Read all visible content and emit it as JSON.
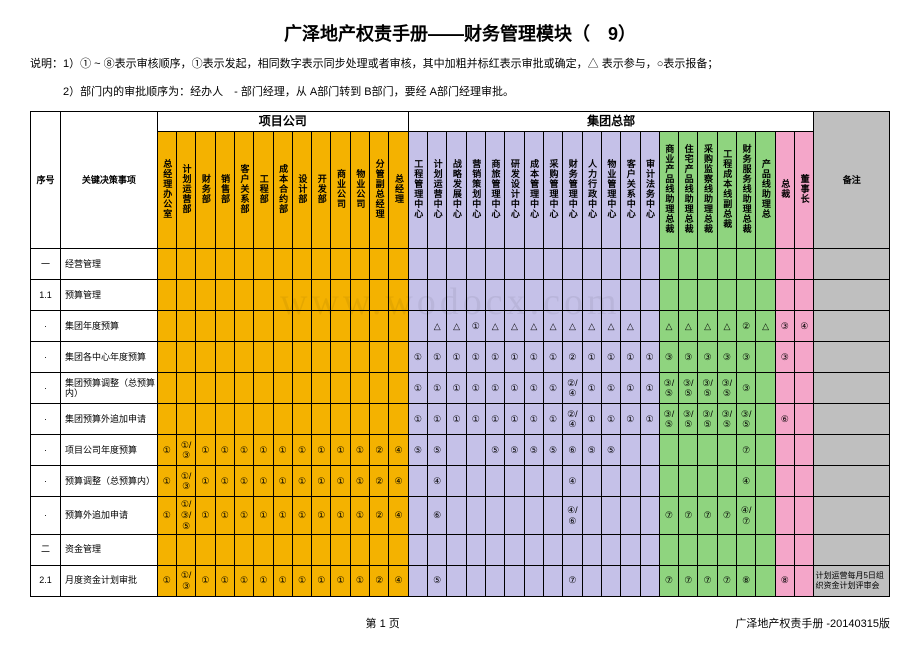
{
  "title": "广泽地产权责手册——财务管理模块（　9）",
  "note1": "说明：1）① ~ ⑧表示审核顺序，①表示发起，相同数字表示同步处理或者审核，其中加粗并标红表示审批或确定，△ 表示参与，○表示报备；",
  "note2": "　　　2）部门内的审批顺序为：经办人　- 部门经理，从 A部门转到 B部门，要经 A部门经理审批。",
  "watermark": "www.wodocx.com",
  "group_proj": "项目公司",
  "group_hq": "集团总部",
  "h_seq": "序号",
  "h_item": "关键决策事项",
  "h_remark": "备注",
  "proj_cols": [
    "总经理办公室",
    "计划运营部",
    "财务部",
    "销售部",
    "客户关系部",
    "工程部",
    "成本合约部",
    "设计部",
    "开发部",
    "商业公司",
    "物业公司",
    "分管副总经理",
    "总经理"
  ],
  "hq_cols": [
    "工程管理中心",
    "计划运营中心",
    "战略发展中心",
    "营销策划中心",
    "商旅管理中心",
    "研发设计中心",
    "成本管理中心",
    "采购管理中心",
    "财务管理中心",
    "人力行政中心",
    "物业管理中心",
    "客户关系中心",
    "审计法务中心",
    "商业产品线助理总裁",
    "住宅产品线助理总裁",
    "采购监察线助理总裁",
    "工程成本线副总裁",
    "财务服务线助理总裁",
    "产品线助理总",
    "总裁",
    "董事长"
  ],
  "rows": [
    {
      "seq": "一",
      "item": "经营管理",
      "cells": [],
      "remark": ""
    },
    {
      "seq": "1.1",
      "item": "预算管理",
      "cells": [],
      "remark": ""
    },
    {
      "seq": "·",
      "item": "集团年度预算",
      "cells": {
        "15": "△",
        "16": "△",
        "17": "①",
        "18": "△",
        "19": "△",
        "20": "△",
        "21": "△",
        "22": "△",
        "23": "△",
        "24": "△",
        "25": "△",
        "27": "△",
        "28": "△",
        "29": "△",
        "30": "△",
        "31": "②",
        "32": "△",
        "33": "③",
        "34": "④"
      },
      "remark": ""
    },
    {
      "seq": "·",
      "item": "集团各中心年度预算",
      "cells": {
        "14": "①",
        "15": "①",
        "16": "①",
        "17": "①",
        "18": "①",
        "19": "①",
        "20": "①",
        "21": "①",
        "22": "②",
        "23": "①",
        "24": "①",
        "25": "①",
        "26": "①",
        "27": "③",
        "28": "③",
        "29": "③",
        "30": "③",
        "31": "③",
        "33": "③"
      },
      "remark": ""
    },
    {
      "seq": "·",
      "item": "集团预算调整（总预算内）",
      "cells": {
        "14": "①",
        "15": "①",
        "16": "①",
        "17": "①",
        "18": "①",
        "19": "①",
        "20": "①",
        "21": "①",
        "22": "②/④",
        "23": "①",
        "24": "①",
        "25": "①",
        "26": "①",
        "27": "③/⑤",
        "28": "③/⑤",
        "29": "③/⑤",
        "30": "③/⑤",
        "31": "③"
      },
      "remark": ""
    },
    {
      "seq": "·",
      "item": "集团预算外追加申请",
      "cells": {
        "14": "①",
        "15": "①",
        "16": "①",
        "17": "①",
        "18": "①",
        "19": "①",
        "20": "①",
        "21": "①",
        "22": "②/④",
        "23": "①",
        "24": "①",
        "25": "①",
        "26": "①",
        "27": "③/⑤",
        "28": "③/⑤",
        "29": "③/⑤",
        "30": "③/⑤",
        "31": "③/⑤",
        "33": "⑥"
      },
      "remark": ""
    },
    {
      "seq": "·",
      "item": "项目公司年度预算",
      "cells": {
        "1": "①",
        "2": "①/③",
        "3": "①",
        "4": "①",
        "5": "①",
        "6": "①",
        "7": "①",
        "8": "①",
        "9": "①",
        "10": "①",
        "11": "①",
        "12": "②",
        "13": "④",
        "14": "⑤",
        "15": "⑤",
        "18": "⑤",
        "19": "⑤",
        "20": "⑤",
        "21": "⑤",
        "22": "⑥",
        "23": "⑤",
        "24": "⑤",
        "31": "⑦"
      },
      "remark": ""
    },
    {
      "seq": "·",
      "item": "预算调整（总预算内）",
      "cells": {
        "1": "①",
        "2": "①/③",
        "3": "①",
        "4": "①",
        "5": "①",
        "6": "①",
        "7": "①",
        "8": "①",
        "9": "①",
        "10": "①",
        "11": "①",
        "12": "②",
        "13": "④",
        "15": "④",
        "22": "④",
        "31": "④"
      },
      "remark": ""
    },
    {
      "seq": "·",
      "item": "预算外追加申请",
      "cells": {
        "1": "①",
        "2": "①/③/⑤",
        "3": "①",
        "4": "①",
        "5": "①",
        "6": "①",
        "7": "①",
        "8": "①",
        "9": "①",
        "10": "①",
        "11": "①",
        "12": "②",
        "13": "④",
        "15": "⑥",
        "22": "④/⑥",
        "27": "⑦",
        "28": "⑦",
        "29": "⑦",
        "30": "⑦",
        "31": "④/⑦"
      },
      "remark": ""
    },
    {
      "seq": "二",
      "item": "资金管理",
      "cells": [],
      "remark": ""
    },
    {
      "seq": "2.1",
      "item": "月度资金计划审批",
      "cells": {
        "1": "①",
        "2": "①/③",
        "3": "①",
        "4": "①",
        "5": "①",
        "6": "①",
        "7": "①",
        "8": "①",
        "9": "①",
        "10": "①",
        "11": "①",
        "12": "②",
        "13": "④",
        "15": "⑤",
        "22": "⑦",
        "27": "⑦",
        "28": "⑦",
        "29": "⑦",
        "30": "⑦",
        "31": "⑧",
        "33": "⑧"
      },
      "remark": "计划运营每月5日组织资金计划评审会"
    }
  ],
  "footer_center": "第 1 页",
  "footer_right": "广泽地产权责手册  -20140315版"
}
